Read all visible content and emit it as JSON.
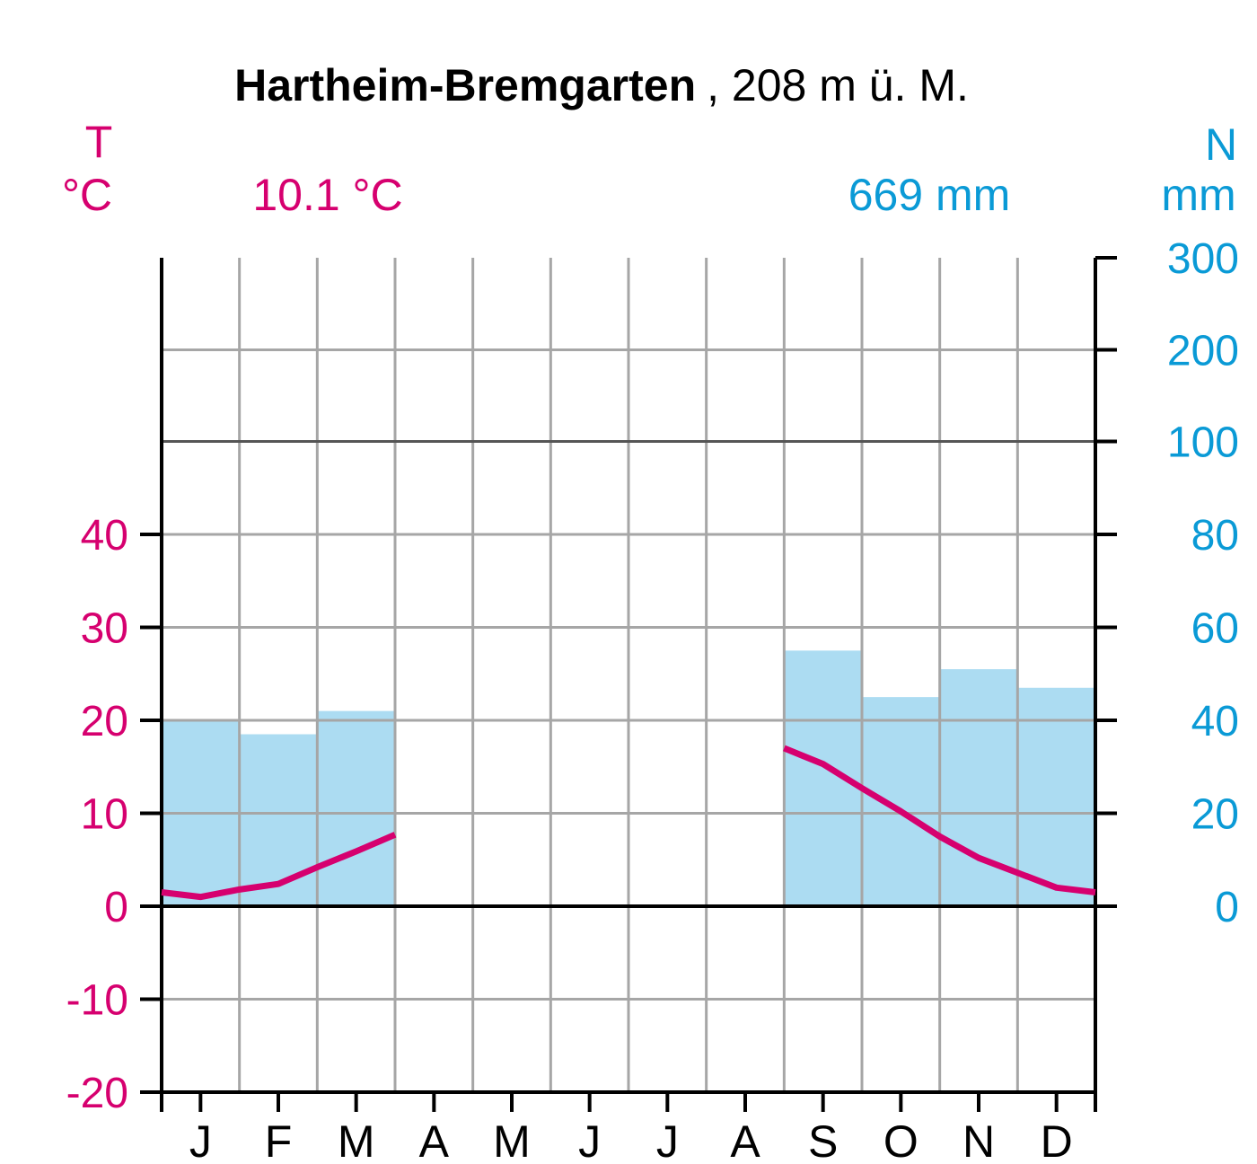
{
  "chart_data": {
    "type": "climate-diagram",
    "title": {
      "station": "Hartheim-Bremgarten",
      "elevation": ", 208 m ü. M."
    },
    "left_axis": {
      "symbol": "T",
      "unit": "°C",
      "ticks": [
        "40",
        "30",
        "20",
        "10",
        "0",
        "-10",
        "-20"
      ],
      "tick_values": [
        40,
        30,
        20,
        10,
        0,
        -10,
        -20
      ],
      "range": [
        -20,
        40
      ]
    },
    "right_axis": {
      "symbol": "N",
      "unit": "mm",
      "ticks": [
        "300",
        "200",
        "100",
        "80",
        "60",
        "40",
        "20",
        "0"
      ],
      "tick_values": [
        300,
        200,
        100,
        80,
        60,
        40,
        20,
        0
      ],
      "range": [
        0,
        300
      ],
      "scale_note_values": [
        0,
        100,
        300
      ]
    },
    "annual_temperature": "10.1 °C",
    "annual_precipitation": "669 mm",
    "months": [
      "J",
      "F",
      "M",
      "A",
      "M",
      "J",
      "J",
      "A",
      "S",
      "O",
      "N",
      "D"
    ],
    "series": [
      {
        "name": "T",
        "kind": "line",
        "unit": "°C",
        "color": "#d6006f",
        "segments": [
          {
            "x": [
              0.0,
              0.5,
              1.0,
              1.5,
              2.0,
              2.5,
              3.0
            ],
            "y": [
              1.5,
              1.0,
              1.8,
              2.4,
              4.2,
              5.9,
              7.7
            ]
          },
          {
            "x": [
              8.0,
              8.5,
              9.0,
              9.5,
              10.0,
              10.5,
              11.0,
              11.5,
              12.0
            ],
            "y": [
              17.0,
              15.3,
              12.7,
              10.2,
              7.5,
              5.2,
              3.6,
              2.0,
              1.5
            ]
          }
        ]
      },
      {
        "name": "N",
        "kind": "bar",
        "unit": "mm",
        "color": "#acdcf2",
        "months_index": [
          0,
          1,
          2,
          8,
          9,
          10,
          11
        ],
        "values": [
          40,
          37,
          42,
          55,
          45,
          51,
          47
        ]
      }
    ],
    "grid": true
  }
}
